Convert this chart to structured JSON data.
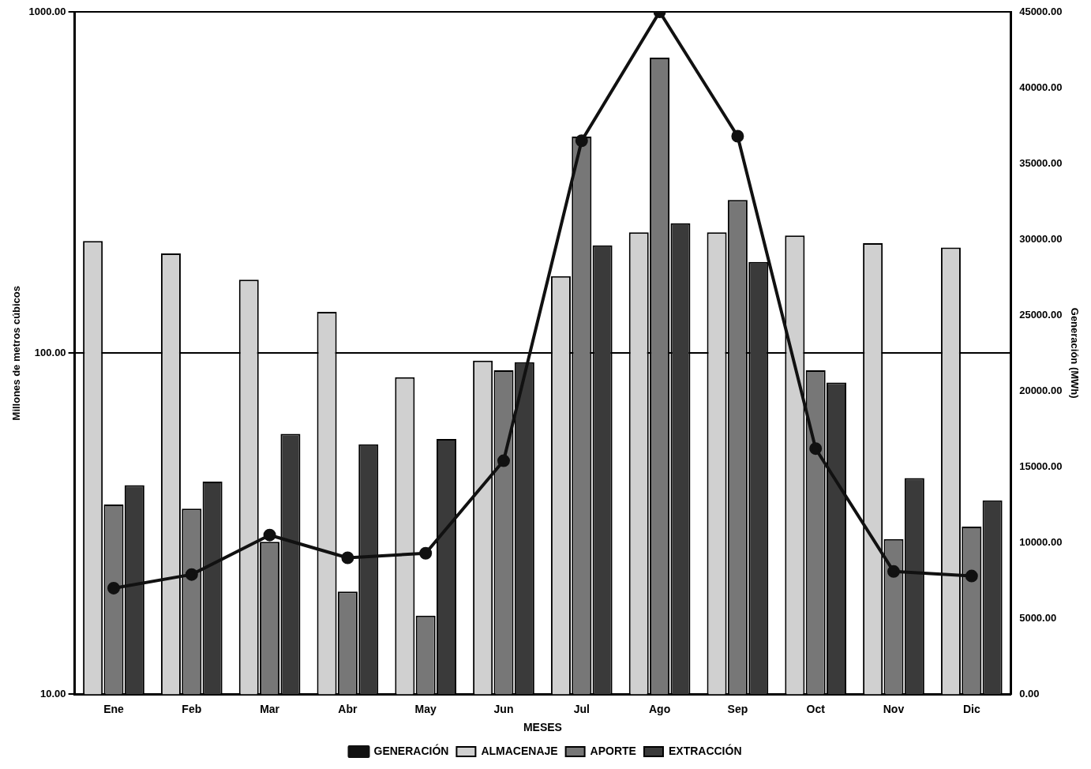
{
  "chart_data": {
    "type": "bar",
    "xlabel": "MESES",
    "ylabel": "Millones de metros cúbicos",
    "y2label": "Generación (MWh)",
    "categories": [
      "Ene",
      "Feb",
      "Mar",
      "Abr",
      "May",
      "Jun",
      "Jul",
      "Ago",
      "Sep",
      "Oct",
      "Nov",
      "Dic"
    ],
    "series": [
      {
        "name": "ALMACENAJE",
        "color": "#d0d0d0",
        "values": [
          213,
          196,
          164,
          132,
          85,
          95,
          168,
          226,
          226,
          221,
          210,
          204
        ]
      },
      {
        "name": "APORTE",
        "color": "#777777",
        "values": [
          36,
          35,
          28,
          20,
          17,
          89,
          431,
          734,
          281,
          89,
          28.5,
          31
        ]
      },
      {
        "name": "EXTRACCIÓN",
        "color": "#3a3a3a",
        "values": [
          41,
          42,
          58,
          54,
          56,
          94,
          207,
          240,
          185,
          82,
          43,
          37
        ]
      },
      {
        "name": "GENERACIÓN",
        "type": "line",
        "axis": "y2",
        "color": "#111111",
        "values": [
          7000,
          7900,
          10500,
          9000,
          9300,
          15400,
          36500,
          45000,
          36800,
          16200,
          8100,
          7800
        ]
      }
    ],
    "log": "y",
    "ylim": [
      10,
      1000
    ],
    "yticks": [
      {
        "value": 10,
        "label": "10.00"
      },
      {
        "value": 100,
        "label": "100.00"
      },
      {
        "value": 1000,
        "label": "1000.00"
      }
    ],
    "y2lim": [
      0,
      45000
    ],
    "y2ticks": [
      {
        "value": 0,
        "label": "0.00"
      },
      {
        "value": 5000,
        "label": "5000.00"
      },
      {
        "value": 10000,
        "label": "10000.00"
      },
      {
        "value": 15000,
        "label": "15000.00"
      },
      {
        "value": 20000,
        "label": "20000.00"
      },
      {
        "value": 25000,
        "label": "25000.00"
      },
      {
        "value": 30000,
        "label": "30000.00"
      },
      {
        "value": 35000,
        "label": "35000.00"
      },
      {
        "value": 40000,
        "label": "40000.00"
      },
      {
        "value": 45000,
        "label": "45000.00"
      }
    ],
    "grid": "y",
    "legend": "bottom",
    "marker": "circle",
    "line_style": "solid"
  }
}
